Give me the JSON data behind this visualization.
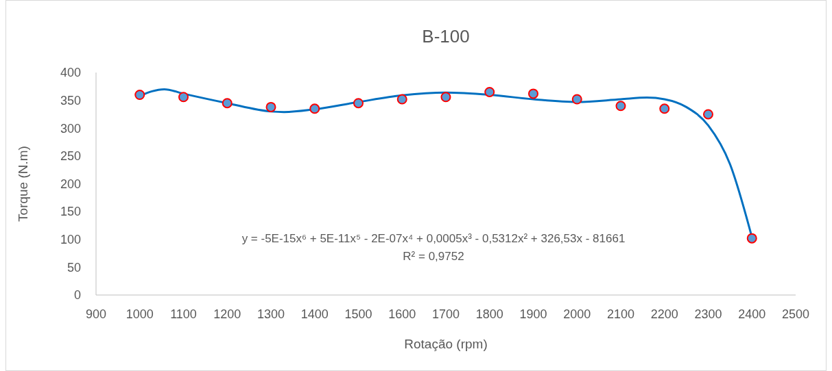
{
  "chart_data": {
    "type": "scatter",
    "title": "B-100",
    "xlabel": "Rotação (rpm)",
    "ylabel": "Torque (N.m)",
    "xlim": [
      900,
      2500
    ],
    "xticks": [
      900,
      1000,
      1100,
      1200,
      1300,
      1400,
      1500,
      1600,
      1700,
      1800,
      1900,
      2000,
      2100,
      2200,
      2300,
      2400,
      2500
    ],
    "ylim": [
      0,
      400
    ],
    "yticks": [
      0,
      50,
      100,
      150,
      200,
      250,
      300,
      350,
      400
    ],
    "grid": false,
    "marker": "circle",
    "series": [
      {
        "color": "#5b9bd5",
        "x": [
          1000,
          1100,
          1200,
          1300,
          1400,
          1500,
          1600,
          1700,
          1800,
          1900,
          2000,
          2100,
          2200,
          2300,
          2400
        ],
        "values": [
          360,
          356,
          345,
          338,
          335,
          345,
          352,
          356,
          365,
          362,
          352,
          340,
          335,
          325,
          102
        ]
      },
      {
        "type": "line",
        "color": "#0070c0",
        "line_style": "solid",
        "marker": "none",
        "x": [
          1000,
          1056,
          1100,
          1200,
          1300,
          1330,
          1400,
          1500,
          1600,
          1700,
          1800,
          1900,
          2000,
          2100,
          2160,
          2200,
          2250,
          2300,
          2350,
          2400
        ],
        "values": [
          358,
          370,
          362,
          345,
          330,
          329,
          334,
          347,
          359,
          364,
          360,
          352,
          347,
          352,
          355,
          352,
          338,
          305,
          235,
          104
        ]
      }
    ],
    "annotations": [
      "y = -5E-15x⁶ + 5E-11x⁵ - 2E-07x⁴ + 0,0005x³ - 0,5312x² + 326,53x - 81661",
      "R² = 0,9752"
    ]
  }
}
